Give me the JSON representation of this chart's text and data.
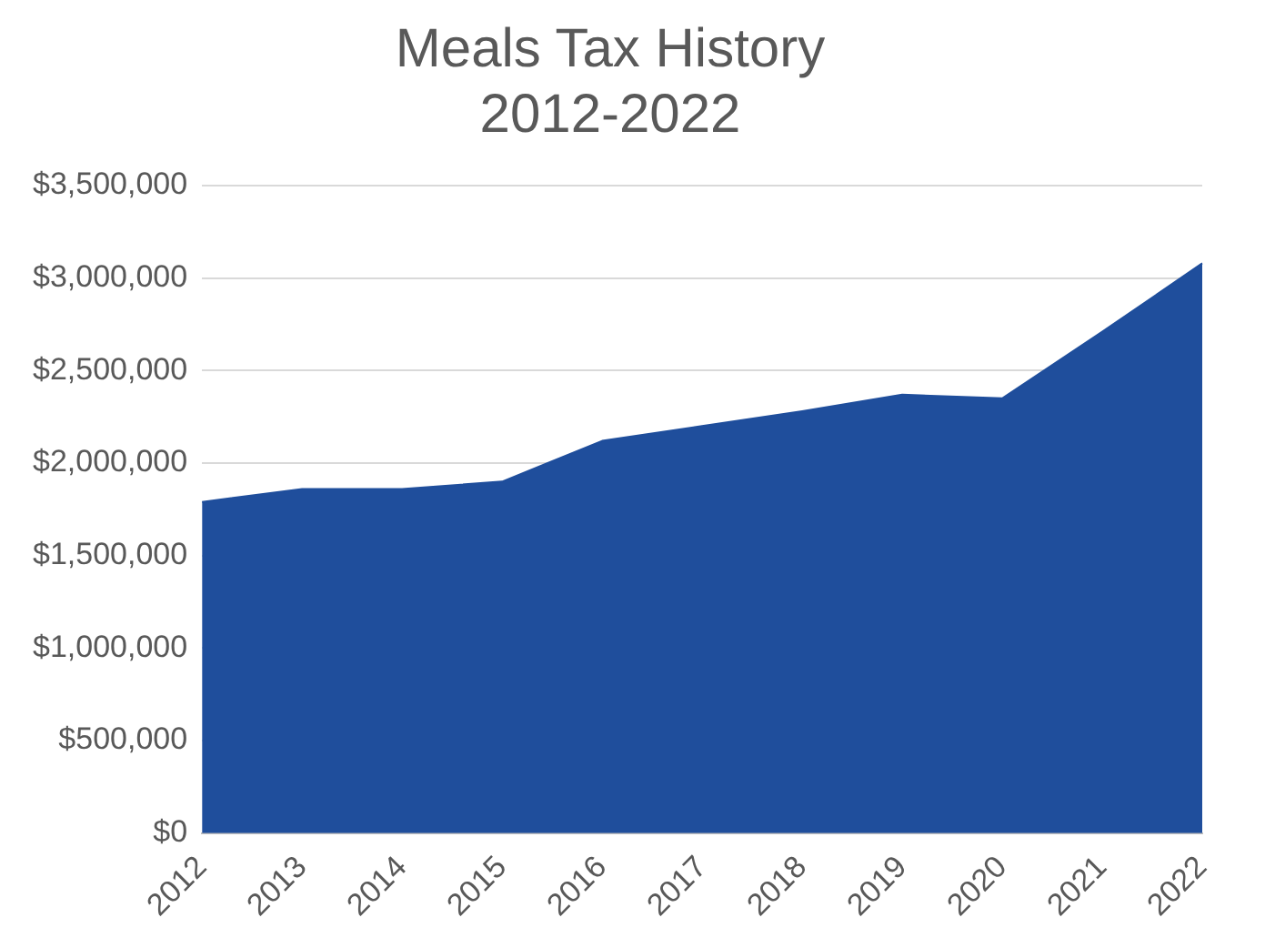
{
  "chart_data": {
    "type": "area",
    "title": [
      "Meals Tax History",
      "2012-2022"
    ],
    "categories": [
      "2012",
      "2013",
      "2014",
      "2015",
      "2016",
      "2017",
      "2018",
      "2019",
      "2020",
      "2021",
      "2022"
    ],
    "values": [
      1790000,
      1860000,
      1860000,
      1900000,
      2120000,
      2200000,
      2280000,
      2370000,
      2350000,
      2710000,
      3080000
    ],
    "color": "#1f4e9c",
    "ylim": [
      0,
      3500000
    ],
    "yticks": [
      {
        "value": 0,
        "label": "$0"
      },
      {
        "value": 500000,
        "label": "$500,000"
      },
      {
        "value": 1000000,
        "label": "$1,000,000"
      },
      {
        "value": 1500000,
        "label": "$1,500,000"
      },
      {
        "value": 2000000,
        "label": "$2,000,000"
      },
      {
        "value": 2500000,
        "label": "$2,500,000"
      },
      {
        "value": 3000000,
        "label": "$3,000,000"
      },
      {
        "value": 3500000,
        "label": "$3,500,000"
      }
    ],
    "grid": "y",
    "legend": false
  }
}
